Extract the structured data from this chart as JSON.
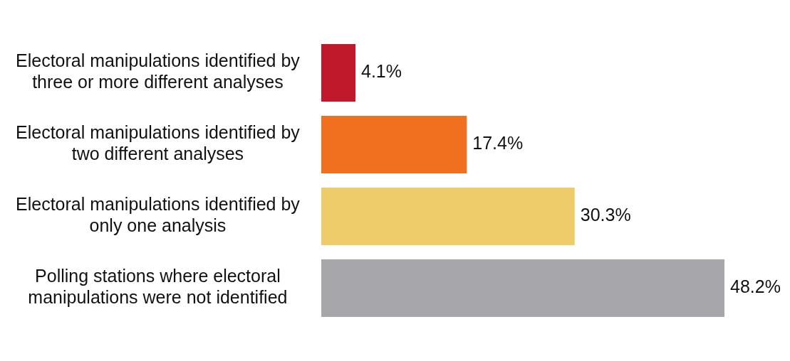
{
  "chart_data": {
    "type": "bar",
    "orientation": "horizontal",
    "categories": [
      "Electoral manipulations identified by three or more different analyses",
      "Electoral manipulations identified by two different analyses",
      "Electoral manipulations identified by only one analysis",
      "Polling stations where electoral manipulations were not identified"
    ],
    "values": [
      4.1,
      17.4,
      30.3,
      48.2
    ],
    "colors": [
      "#c0192b",
      "#f07020",
      "#efcc6a",
      "#a7a6ab"
    ],
    "value_labels": [
      "4.1%",
      "17.4%",
      "30.3%",
      "48.2%"
    ],
    "legend": false
  }
}
